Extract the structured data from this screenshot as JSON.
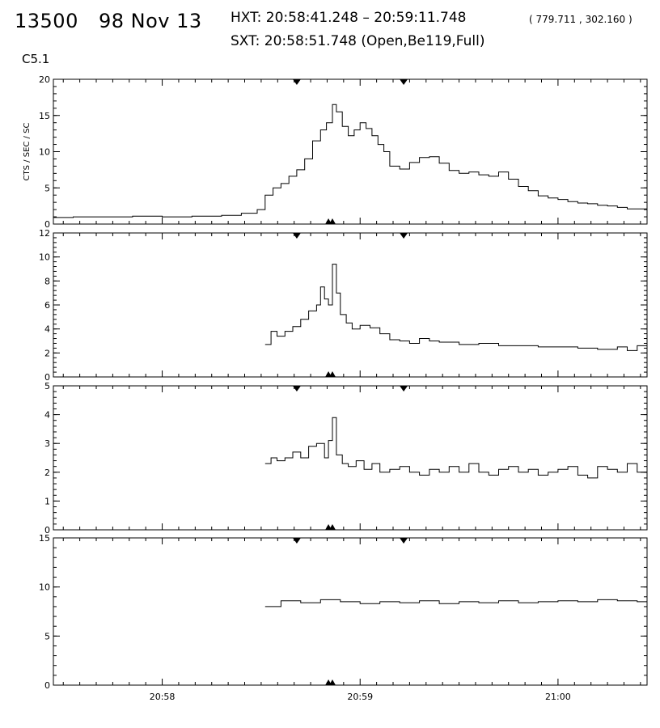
{
  "header": {
    "event_id": "13500",
    "date": "98 Nov 13",
    "hxt": "HXT: 20:58:41.248 – 20:59:11.748",
    "position": "( 779.711 , 302.160 )",
    "sxt": "SXT: 20:58:51.748 (Open,Be119,Full)",
    "goes_class": "C5.1"
  },
  "chart_data": {
    "type": "line",
    "ylabel": "CTS / SEC / SC",
    "x_unit": "UT time (minutes after 20:00)",
    "xlim": [
      57.45,
      60.45
    ],
    "x_ticks": [
      {
        "value": 58.0,
        "label": "20:58"
      },
      {
        "value": 59.0,
        "label": "20:59"
      },
      {
        "value": 60.0,
        "label": "21:00"
      }
    ],
    "top_markers": [
      58.68,
      59.22
    ],
    "bottom_markers": [
      58.84,
      58.86
    ],
    "panels": [
      {
        "ylim": [
          0,
          20
        ],
        "yticks": [
          0,
          5,
          10,
          15,
          20
        ],
        "series": [
          [
            57.45,
            0.9
          ],
          [
            57.55,
            1.0
          ],
          [
            57.7,
            1.0
          ],
          [
            57.85,
            1.1
          ],
          [
            58.0,
            1.0
          ],
          [
            58.15,
            1.1
          ],
          [
            58.3,
            1.2
          ],
          [
            58.4,
            1.5
          ],
          [
            58.48,
            2.0
          ],
          [
            58.52,
            4.0
          ],
          [
            58.56,
            5.0
          ],
          [
            58.6,
            5.6
          ],
          [
            58.64,
            6.6
          ],
          [
            58.68,
            7.5
          ],
          [
            58.72,
            9.0
          ],
          [
            58.76,
            11.5
          ],
          [
            58.8,
            13.0
          ],
          [
            58.83,
            14.0
          ],
          [
            58.86,
            16.5
          ],
          [
            58.88,
            15.5
          ],
          [
            58.91,
            13.5
          ],
          [
            58.94,
            12.2
          ],
          [
            58.97,
            13.0
          ],
          [
            59.0,
            14.0
          ],
          [
            59.03,
            13.2
          ],
          [
            59.06,
            12.2
          ],
          [
            59.09,
            11.0
          ],
          [
            59.12,
            10.0
          ],
          [
            59.15,
            8.0
          ],
          [
            59.2,
            7.6
          ],
          [
            59.25,
            8.5
          ],
          [
            59.3,
            9.2
          ],
          [
            59.35,
            9.3
          ],
          [
            59.4,
            8.4
          ],
          [
            59.45,
            7.4
          ],
          [
            59.5,
            7.0
          ],
          [
            59.55,
            7.2
          ],
          [
            59.6,
            6.8
          ],
          [
            59.65,
            6.6
          ],
          [
            59.7,
            7.2
          ],
          [
            59.75,
            6.2
          ],
          [
            59.8,
            5.2
          ],
          [
            59.85,
            4.6
          ],
          [
            59.9,
            3.9
          ],
          [
            59.95,
            3.6
          ],
          [
            60.0,
            3.4
          ],
          [
            60.05,
            3.1
          ],
          [
            60.1,
            2.9
          ],
          [
            60.15,
            2.8
          ],
          [
            60.2,
            2.6
          ],
          [
            60.25,
            2.5
          ],
          [
            60.3,
            2.3
          ],
          [
            60.35,
            2.1
          ],
          [
            60.45,
            1.9
          ]
        ]
      },
      {
        "ylim": [
          0,
          12
        ],
        "yticks": [
          0,
          2,
          4,
          6,
          8,
          10,
          12
        ],
        "series": [
          [
            58.52,
            2.7
          ],
          [
            58.55,
            3.8
          ],
          [
            58.58,
            3.4
          ],
          [
            58.62,
            3.8
          ],
          [
            58.66,
            4.2
          ],
          [
            58.7,
            4.8
          ],
          [
            58.74,
            5.5
          ],
          [
            58.78,
            6.0
          ],
          [
            58.8,
            7.5
          ],
          [
            58.82,
            6.5
          ],
          [
            58.84,
            6.0
          ],
          [
            58.86,
            9.4
          ],
          [
            58.88,
            7.0
          ],
          [
            58.9,
            5.2
          ],
          [
            58.93,
            4.5
          ],
          [
            58.96,
            4.0
          ],
          [
            59.0,
            4.3
          ],
          [
            59.05,
            4.1
          ],
          [
            59.1,
            3.6
          ],
          [
            59.15,
            3.1
          ],
          [
            59.2,
            3.0
          ],
          [
            59.25,
            2.8
          ],
          [
            59.3,
            3.2
          ],
          [
            59.35,
            3.0
          ],
          [
            59.4,
            2.9
          ],
          [
            59.5,
            2.7
          ],
          [
            59.6,
            2.8
          ],
          [
            59.7,
            2.6
          ],
          [
            59.8,
            2.6
          ],
          [
            59.9,
            2.5
          ],
          [
            60.0,
            2.5
          ],
          [
            60.1,
            2.4
          ],
          [
            60.2,
            2.3
          ],
          [
            60.3,
            2.5
          ],
          [
            60.35,
            2.2
          ],
          [
            60.4,
            2.6
          ],
          [
            60.45,
            2.3
          ]
        ]
      },
      {
        "ylim": [
          0,
          5
        ],
        "yticks": [
          0,
          1,
          2,
          3,
          4,
          5
        ],
        "series": [
          [
            58.52,
            2.3
          ],
          [
            58.55,
            2.5
          ],
          [
            58.58,
            2.4
          ],
          [
            58.62,
            2.5
          ],
          [
            58.66,
            2.7
          ],
          [
            58.7,
            2.5
          ],
          [
            58.74,
            2.9
          ],
          [
            58.78,
            3.0
          ],
          [
            58.82,
            2.5
          ],
          [
            58.84,
            3.1
          ],
          [
            58.86,
            3.9
          ],
          [
            58.88,
            2.6
          ],
          [
            58.91,
            2.3
          ],
          [
            58.94,
            2.2
          ],
          [
            58.98,
            2.4
          ],
          [
            59.02,
            2.1
          ],
          [
            59.06,
            2.3
          ],
          [
            59.1,
            2.0
          ],
          [
            59.15,
            2.1
          ],
          [
            59.2,
            2.2
          ],
          [
            59.25,
            2.0
          ],
          [
            59.3,
            1.9
          ],
          [
            59.35,
            2.1
          ],
          [
            59.4,
            2.0
          ],
          [
            59.45,
            2.2
          ],
          [
            59.5,
            2.0
          ],
          [
            59.55,
            2.3
          ],
          [
            59.6,
            2.0
          ],
          [
            59.65,
            1.9
          ],
          [
            59.7,
            2.1
          ],
          [
            59.75,
            2.2
          ],
          [
            59.8,
            2.0
          ],
          [
            59.85,
            2.1
          ],
          [
            59.9,
            1.9
          ],
          [
            59.95,
            2.0
          ],
          [
            60.0,
            2.1
          ],
          [
            60.05,
            2.2
          ],
          [
            60.1,
            1.9
          ],
          [
            60.15,
            1.8
          ],
          [
            60.2,
            2.2
          ],
          [
            60.25,
            2.1
          ],
          [
            60.3,
            2.0
          ],
          [
            60.35,
            2.3
          ],
          [
            60.4,
            2.0
          ],
          [
            60.45,
            2.2
          ]
        ]
      },
      {
        "ylim": [
          0,
          15
        ],
        "yticks": [
          0,
          5,
          10,
          15
        ],
        "series": [
          [
            58.52,
            8.0
          ],
          [
            58.6,
            8.6
          ],
          [
            58.7,
            8.4
          ],
          [
            58.8,
            8.7
          ],
          [
            58.9,
            8.5
          ],
          [
            59.0,
            8.3
          ],
          [
            59.1,
            8.5
          ],
          [
            59.2,
            8.4
          ],
          [
            59.3,
            8.6
          ],
          [
            59.4,
            8.3
          ],
          [
            59.5,
            8.5
          ],
          [
            59.6,
            8.4
          ],
          [
            59.7,
            8.6
          ],
          [
            59.8,
            8.4
          ],
          [
            59.9,
            8.5
          ],
          [
            60.0,
            8.6
          ],
          [
            60.1,
            8.5
          ],
          [
            60.2,
            8.7
          ],
          [
            60.3,
            8.6
          ],
          [
            60.4,
            8.5
          ],
          [
            60.45,
            8.6
          ]
        ]
      }
    ]
  }
}
